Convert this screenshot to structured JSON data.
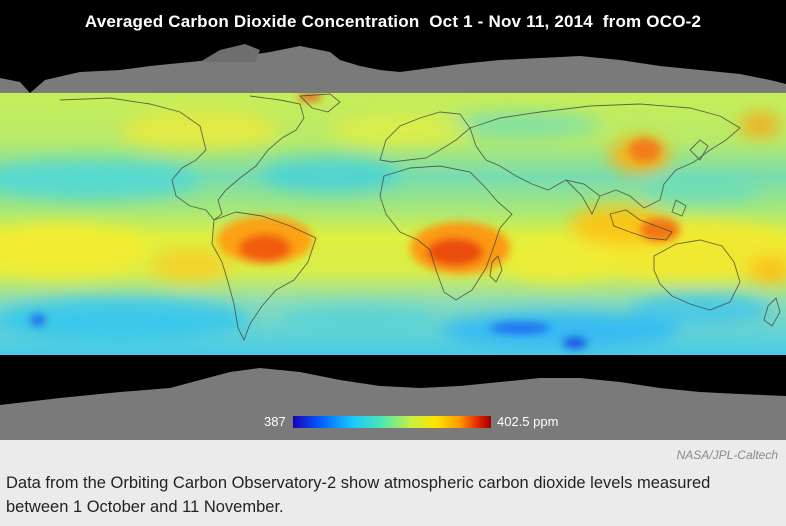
{
  "figure": {
    "title": "Averaged Carbon Dioxide Concentration  Oct 1 - Nov 11, 2014  from OCO-2",
    "colorbar": {
      "min_label": "387",
      "max_label": "402.5 ppm",
      "min_value": 387,
      "max_value": 402.5,
      "unit": "ppm",
      "colors": [
        "#1a00b4",
        "#0060ff",
        "#19c8ff",
        "#4de6b0",
        "#c8f040",
        "#ffe400",
        "#ff9b00",
        "#e02000",
        "#a00000"
      ]
    },
    "no_data_color": "#7a7a7a",
    "land_outline_color": "#3a3a3a"
  },
  "credit": "NASA/JPL-Caltech",
  "caption": "Data from the Orbiting Carbon Observatory-2 show atmospheric carbon dioxide levels measured between 1 October and 11 November."
}
